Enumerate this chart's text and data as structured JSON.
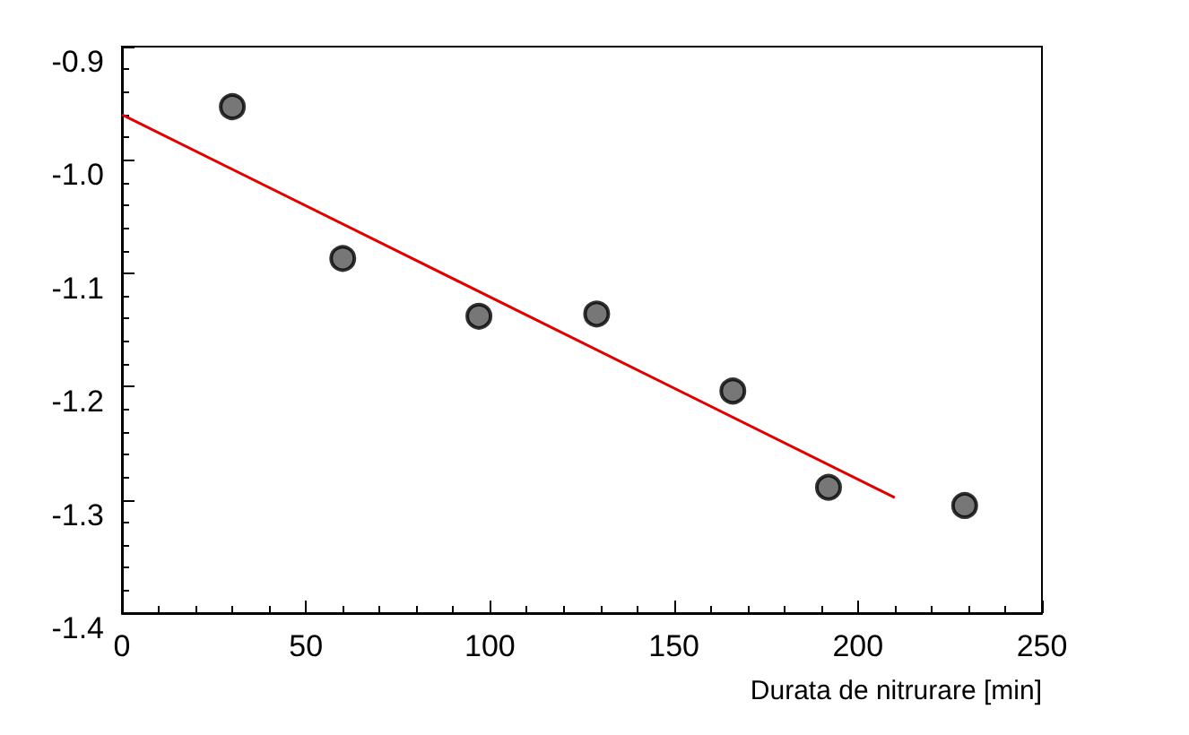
{
  "chart_data": {
    "type": "scatter",
    "xlabel": "Durata de nitrurare [min]",
    "xlim": [
      0,
      250
    ],
    "xticks": [
      0,
      50,
      100,
      150,
      200,
      250
    ],
    "ylim": [
      -1.4,
      -0.9
    ],
    "yticks": [
      {
        "value": -1.4,
        "label": "-1.4"
      },
      {
        "value": -1.3,
        "label": "-1.3"
      },
      {
        "value": -1.2,
        "label": "-1.2"
      },
      {
        "value": -1.1,
        "label": "-1.1"
      },
      {
        "value": -1.0,
        "label": "-1.0"
      },
      {
        "value": -0.9,
        "label": "-0.9"
      }
    ],
    "grid": false,
    "marker": "circle",
    "series": [
      {
        "color": "#555555",
        "x": [
          30,
          60,
          97,
          129,
          166,
          192,
          229
        ],
        "values": [
          -0.953,
          -1.087,
          -1.138,
          -1.136,
          -1.204,
          -1.289,
          -1.305
        ]
      },
      {
        "type": "line",
        "color": "#e00000",
        "marker": "none",
        "x": [
          0,
          210
        ],
        "values": [
          -0.96,
          -1.298
        ]
      }
    ]
  }
}
